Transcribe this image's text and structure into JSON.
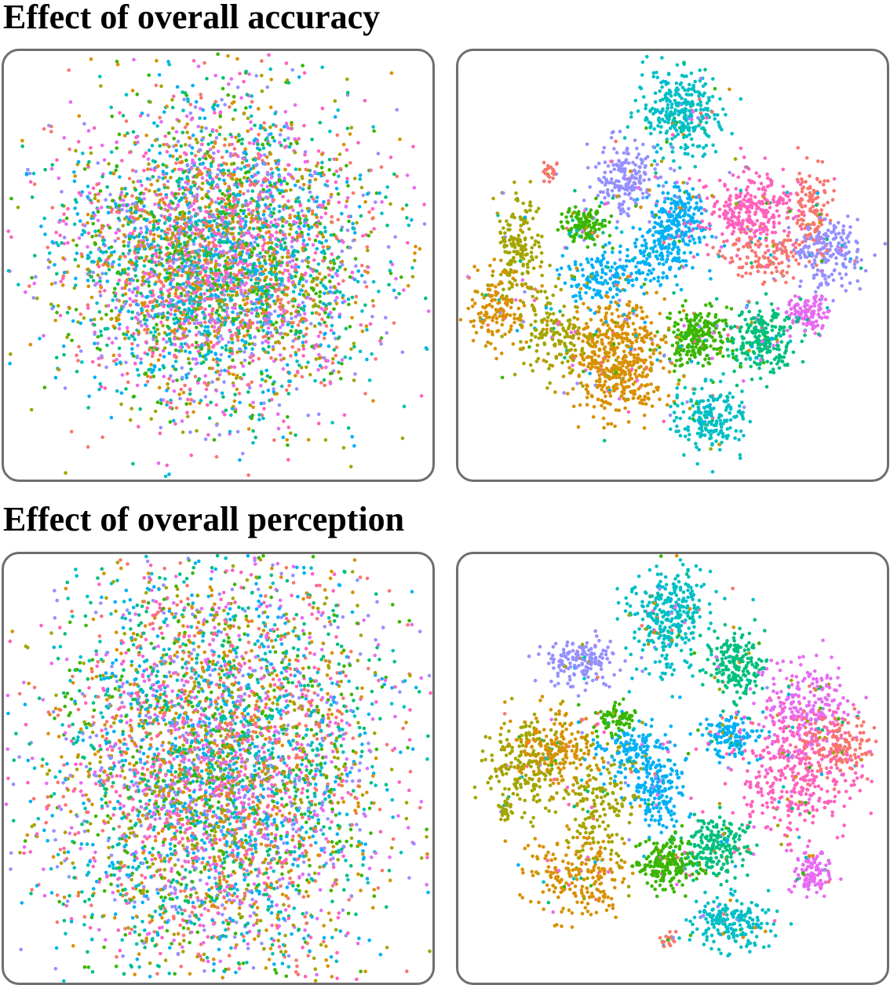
{
  "sections": [
    {
      "title": "Effect of overall accuracy"
    },
    {
      "title": "Effect of overall perception"
    }
  ],
  "chart_data": [
    {
      "type": "scatter",
      "section": "Effect of overall accuracy",
      "panel": "left",
      "pattern": "mixed (no class separation)",
      "grid": false,
      "axes": false
    },
    {
      "type": "scatter",
      "section": "Effect of overall accuracy",
      "panel": "right",
      "pattern": "class clusters",
      "grid": false,
      "axes": false
    },
    {
      "type": "scatter",
      "section": "Effect of overall perception",
      "panel": "left",
      "pattern": "mixed (no class separation)",
      "grid": false,
      "axes": false
    },
    {
      "type": "scatter",
      "section": "Effect of overall perception",
      "panel": "right",
      "pattern": "class clusters",
      "grid": false,
      "axes": false
    }
  ],
  "palette": [
    "#F8766D",
    "#D89000",
    "#A3A500",
    "#39B600",
    "#00BF7D",
    "#00BFC4",
    "#00B0F6",
    "#9590FF",
    "#E76BF3",
    "#FF62BC"
  ],
  "border_color": "#6e6e6e"
}
